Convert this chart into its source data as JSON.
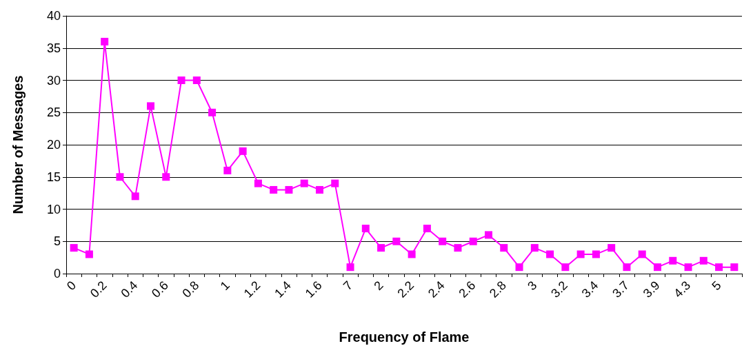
{
  "chart_data": {
    "type": "line",
    "xlabel": "Frequency of Flame",
    "ylabel": "Number of Messages",
    "categories": [
      "0",
      null,
      "0.2",
      null,
      "0.4",
      null,
      "0.6",
      null,
      "0.8",
      null,
      "1",
      null,
      "1.2",
      null,
      "1.4",
      null,
      "1.6",
      null,
      "7",
      null,
      "2",
      null,
      "2.2",
      null,
      "2.4",
      null,
      "2.6",
      null,
      "2.8",
      null,
      "3",
      null,
      "3.2",
      null,
      "3.4",
      null,
      "3.7",
      null,
      "3.9",
      null,
      "4.3",
      null,
      "5",
      null
    ],
    "series": [
      {
        "color": "#ff00ff",
        "values": [
          4,
          3,
          36,
          15,
          12,
          26,
          15,
          30,
          30,
          25,
          16,
          19,
          14,
          13,
          13,
          14,
          13,
          14,
          1,
          7,
          4,
          5,
          3,
          7,
          5,
          4,
          5,
          6,
          4,
          1,
          4,
          3,
          1,
          3,
          3,
          4,
          1,
          3,
          1,
          2,
          1,
          2,
          1,
          1
        ]
      }
    ],
    "ylim": [
      0,
      40
    ],
    "yticks": [
      0,
      5,
      10,
      15,
      20,
      25,
      30,
      35,
      40
    ],
    "grid": "y",
    "marker": "square",
    "line_style": "solid"
  }
}
